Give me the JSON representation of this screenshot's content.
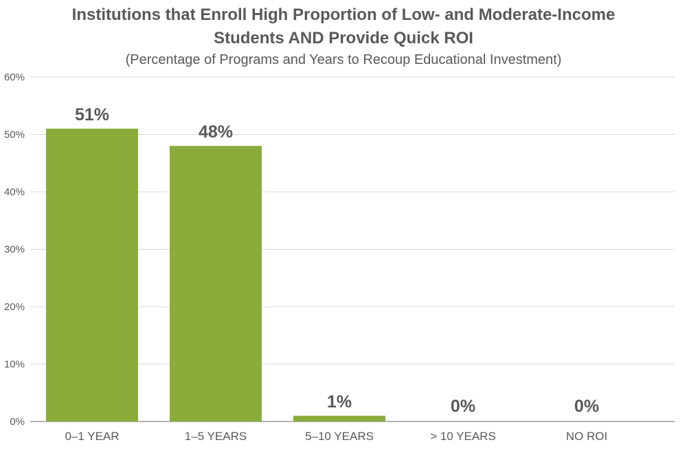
{
  "chart_data": {
    "type": "bar",
    "title_line1": "Institutions that Enroll High Proportion of Low- and Moderate-Income",
    "title_line2": "Students AND Provide Quick ROI",
    "subtitle": "(Percentage of Programs and Years to Recoup Educational Investment)",
    "categories": [
      "0–1 YEAR",
      "1–5 YEARS",
      "5–10 YEARS",
      "> 10 YEARS",
      "NO ROI"
    ],
    "values": [
      51,
      48,
      1,
      0,
      0
    ],
    "data_labels": [
      "51%",
      "48%",
      "1%",
      "0%",
      "0%"
    ],
    "ylim": [
      0,
      60
    ],
    "yticks": [
      0,
      10,
      20,
      30,
      40,
      50,
      60
    ],
    "ytick_labels": [
      "0%",
      "10%",
      "20%",
      "30%",
      "40%",
      "50%",
      "60%"
    ],
    "xlabel": "",
    "ylabel": "",
    "grid": true,
    "legend": "none",
    "bar_color": "#8aac3b",
    "grid_color": "#d9d9d9",
    "text_color": "#595959"
  }
}
